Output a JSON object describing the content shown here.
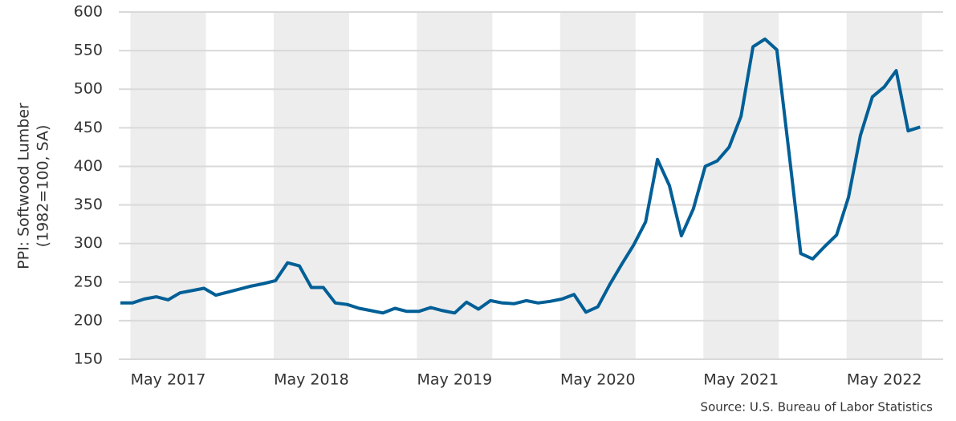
{
  "chart_data": {
    "type": "line",
    "ylabel": [
      "PPI: Softwood Lumber",
      "(1982=100, SA)"
    ],
    "source": "Source: U.S.  Bureau of Labor Statistics",
    "categories": [
      null,
      null,
      null,
      null,
      "May 2017",
      null,
      null,
      null,
      null,
      null,
      null,
      null,
      null,
      null,
      null,
      null,
      "May 2018",
      null,
      null,
      null,
      null,
      null,
      null,
      null,
      null,
      null,
      null,
      null,
      "May 2019",
      null,
      null,
      null,
      null,
      null,
      null,
      null,
      null,
      null,
      null,
      null,
      "May 2020",
      null,
      null,
      null,
      null,
      null,
      null,
      null,
      null,
      null,
      null,
      null,
      "May 2021",
      null,
      null,
      null,
      null,
      null,
      null,
      null,
      null,
      null,
      null,
      null,
      "May 2022",
      null,
      null,
      null
    ],
    "series": [
      {
        "name": "PPI: Softwood Lumber",
        "color": "#005f96",
        "values": [
          223,
          223,
          228,
          231,
          227,
          236,
          239,
          242,
          233,
          237,
          241,
          245,
          248,
          252,
          275,
          271,
          243,
          243,
          223,
          221,
          216,
          213,
          210,
          216,
          212,
          212,
          217,
          213,
          210,
          224,
          215,
          226,
          223,
          222,
          226,
          223,
          225,
          228,
          234,
          211,
          218,
          247,
          273,
          298,
          328,
          409,
          375,
          310,
          345,
          400,
          407,
          425,
          465,
          555,
          565,
          551,
          420,
          287,
          280,
          296,
          311,
          360,
          440,
          490,
          503,
          524,
          446,
          451
        ]
      }
    ],
    "ylim": [
      150,
      600
    ],
    "yticks": [
      150,
      200,
      250,
      300,
      350,
      400,
      450,
      500,
      550,
      600
    ],
    "grid": true
  }
}
